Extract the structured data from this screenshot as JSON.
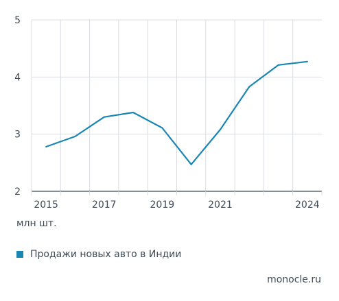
{
  "chart_data": {
    "type": "line",
    "x": [
      2015,
      2016,
      2017,
      2018,
      2019,
      2020,
      2021,
      2022,
      2023,
      2024
    ],
    "series": [
      {
        "name": "Продажи новых авто в Индии",
        "values": [
          2.78,
          2.96,
          3.3,
          3.38,
          3.11,
          2.47,
          3.08,
          3.83,
          4.21,
          4.27
        ]
      }
    ],
    "x_tick_labels": [
      "2015",
      "2017",
      "2019",
      "2021",
      "2024"
    ],
    "y_tick_labels": [
      "2",
      "3",
      "4",
      "5"
    ],
    "ylim": [
      2,
      5
    ],
    "ylabel": "млн шт.",
    "grid": true,
    "legend_placement": "bottom-left"
  },
  "colors": {
    "line": "#1a86b4",
    "grid": "#d8dde2",
    "axis": "#3f4a55",
    "text": "#3f4a55"
  },
  "source": "monocle.ru"
}
